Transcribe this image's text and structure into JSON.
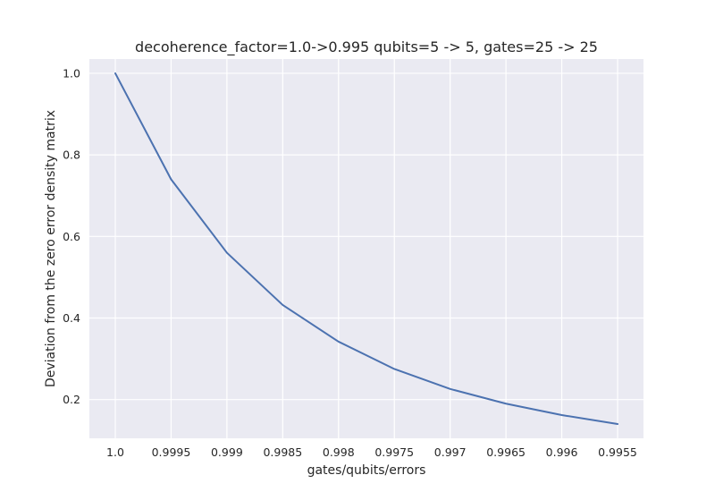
{
  "chart_data": {
    "type": "line",
    "title": "decoherence_factor=1.0->0.995 qubits=5 -> 5, gates=25 -> 25",
    "xlabel": "gates/qubits/errors",
    "ylabel": "Deviation from the zero error density matrix",
    "categories": [
      "1.0",
      "0.9995",
      "0.999",
      "0.9985",
      "0.998",
      "0.9975",
      "0.997",
      "0.9965",
      "0.996",
      "0.9955"
    ],
    "yticks": [
      "0.2",
      "0.4",
      "0.6",
      "0.8",
      "1.0"
    ],
    "ylim": [
      0.105,
      1.035
    ],
    "grid": true,
    "colors": {
      "background": "#EAEAF2",
      "line": "#4C72B0"
    },
    "series": [
      {
        "values": [
          1.0,
          0.74,
          0.56,
          0.432,
          0.342,
          0.275,
          0.226,
          0.19,
          0.162,
          0.14
        ]
      }
    ]
  }
}
